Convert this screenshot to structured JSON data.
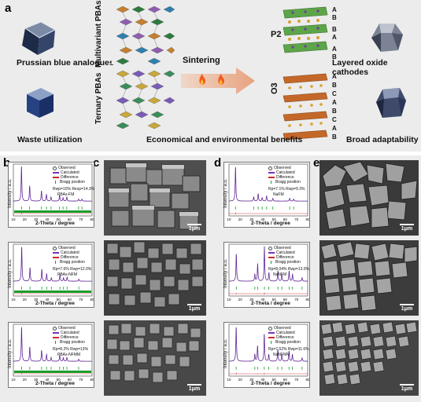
{
  "panels": {
    "a": "a",
    "b": "b",
    "c": "c",
    "d": "d",
    "e": "e"
  },
  "panel_a": {
    "prussian_blue": "Prussian blue analogues",
    "waste": "Waste utilization",
    "multivariant": "Multivariant PBAs",
    "ternary": "Ternary PBAs",
    "sintering": "Sintering",
    "economical": "Economical and environmental benefits",
    "p2": "P2",
    "o3": "O3",
    "p2_stack": [
      "A",
      "B",
      "B",
      "A",
      "A",
      "B"
    ],
    "o3_stack": [
      "A",
      "B",
      "C",
      "A",
      "B",
      "C",
      "A",
      "B"
    ],
    "layered": "Layered oxide cathodes",
    "broad": "Broad adaptability"
  },
  "xrd_common": {
    "ylabel": "Intensity / a.u.",
    "xlabel": "2-Theta / degree",
    "legend": [
      "Observed",
      "Calculated",
      "Difference",
      "Bragg position"
    ],
    "xticks": [
      "10",
      "20",
      "30",
      "40",
      "50",
      "60",
      "70",
      "80"
    ]
  },
  "chart_data": [
    {
      "type": "line",
      "panel": "b1",
      "sample": "PBAs-FM",
      "r_text": "Rwp=10%   Rexp=14.3%",
      "xlabel": "2-Theta / degree",
      "ylabel": "Intensity / a.u.",
      "xlim": [
        10,
        80
      ],
      "peaks": [
        [
          17.2,
          1.0
        ],
        [
          24.5,
          0.45
        ],
        [
          35.0,
          0.3
        ],
        [
          39.4,
          0.2
        ],
        [
          43.5,
          0.12
        ],
        [
          51.1,
          0.18
        ],
        [
          54.2,
          0.1
        ],
        [
          57.5,
          0.12
        ],
        [
          68.0,
          0.06
        ],
        [
          71.0,
          0.06
        ]
      ]
    },
    {
      "type": "line",
      "panel": "b2",
      "sample": "PBAs-NFM",
      "r_text": "Rp=7.6%   Rwp=12.0%",
      "xlabel": "2-Theta / degree",
      "ylabel": "Intensity / a.u.",
      "xlim": [
        10,
        80
      ],
      "peaks": [
        [
          17.4,
          1.0
        ],
        [
          24.8,
          0.4
        ],
        [
          35.3,
          0.35
        ],
        [
          39.6,
          0.22
        ],
        [
          43.8,
          0.1
        ],
        [
          51.4,
          0.2
        ],
        [
          54.6,
          0.1
        ],
        [
          57.8,
          0.12
        ],
        [
          68.2,
          0.06
        ]
      ]
    },
    {
      "type": "line",
      "panel": "b3",
      "sample": "PBAs-NFMM",
      "r_text": "Rp=8.2%   Rwp=13%",
      "xlabel": "2-Theta / degree",
      "ylabel": "Intensity / a.u.",
      "xlim": [
        10,
        80
      ],
      "peaks": [
        [
          17.3,
          1.0
        ],
        [
          24.6,
          0.42
        ],
        [
          35.1,
          0.32
        ],
        [
          39.5,
          0.2
        ],
        [
          43.6,
          0.11
        ],
        [
          51.2,
          0.18
        ],
        [
          54.4,
          0.1
        ],
        [
          57.6,
          0.11
        ],
        [
          68.1,
          0.06
        ]
      ]
    },
    {
      "type": "line",
      "panel": "d1",
      "sample": "NaFM",
      "r_text": "Rp=7.1%   Rwp=9.3%",
      "xlabel": "2-Theta / degree",
      "ylabel": "Intensity / a.u.",
      "xlim": [
        10,
        80
      ],
      "peaks": [
        [
          15.8,
          1.0
        ],
        [
          32.0,
          0.12
        ],
        [
          36.0,
          0.22
        ],
        [
          39.5,
          0.1
        ],
        [
          43.5,
          0.15
        ],
        [
          49.0,
          0.08
        ],
        [
          64.0,
          0.08
        ],
        [
          67.5,
          0.06
        ]
      ]
    },
    {
      "type": "line",
      "panel": "d2",
      "sample": "NaNFM",
      "r_text": "Rp=8.04%   Rwp=13.0%",
      "xlabel": "2-Theta / degree",
      "ylabel": "Intensity / a.u.",
      "xlim": [
        10,
        80
      ],
      "peaks": [
        [
          16.5,
          0.8
        ],
        [
          33.0,
          0.2
        ],
        [
          35.5,
          0.5
        ],
        [
          41.5,
          1.0
        ],
        [
          45.5,
          0.25
        ],
        [
          53.5,
          0.3
        ],
        [
          57.0,
          0.2
        ],
        [
          63.5,
          0.3
        ],
        [
          66.5,
          0.2
        ],
        [
          75.0,
          0.1
        ]
      ]
    },
    {
      "type": "line",
      "panel": "d3",
      "sample": "NaNFMM",
      "r_text": "Rp=7.52%   Rwp=11.6%",
      "xlabel": "2-Theta / degree",
      "ylabel": "Intensity / a.u.",
      "xlim": [
        10,
        80
      ],
      "peaks": [
        [
          16.4,
          1.0
        ],
        [
          33.0,
          0.2
        ],
        [
          35.4,
          0.45
        ],
        [
          41.4,
          0.8
        ],
        [
          45.4,
          0.2
        ],
        [
          53.4,
          0.35
        ],
        [
          57.0,
          0.2
        ],
        [
          63.4,
          0.3
        ],
        [
          66.4,
          0.2
        ],
        [
          75.0,
          0.1
        ]
      ]
    }
  ],
  "scale_label": "1μm",
  "colors": {
    "observed": "#222222",
    "calculated": "#7b2fbf",
    "difference": "#cc2a2a",
    "bragg": "#1a9d2a",
    "background": "#ececec"
  }
}
